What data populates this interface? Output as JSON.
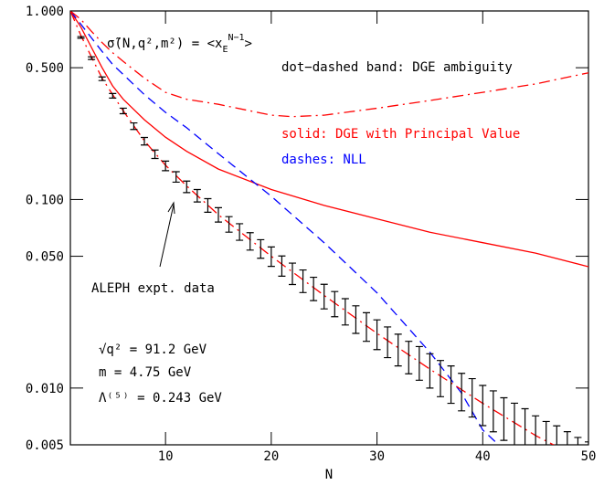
{
  "chart_data": {
    "type": "line",
    "log_y": true,
    "title": [
      "σ̃(N,q²,m²) = <x",
      "E",
      "N−1",
      ">"
    ],
    "xlabel": "N",
    "xlim": [
      1,
      50
    ],
    "xticks": [
      10,
      20,
      30,
      40,
      50
    ],
    "ylim": [
      0.005,
      1.0
    ],
    "yticks": [
      {
        "value": 0.005,
        "label": "0.005"
      },
      {
        "value": 0.01,
        "label": "0.010"
      },
      {
        "value": 0.05,
        "label": "0.050"
      },
      {
        "value": 0.1,
        "label": "0.100"
      },
      {
        "value": 0.5,
        "label": "0.500"
      },
      {
        "value": 1.0,
        "label": "1.000"
      }
    ],
    "annotations": [
      {
        "text": "dot−dashed band: DGE ambiguity",
        "color": "#000000"
      },
      {
        "text": "solid: DGE with Principal Value",
        "color": "#ff0000"
      },
      {
        "text": "dashes: NLL",
        "color": "#0000ff"
      },
      {
        "text": "ALEPH expt. data",
        "color": "#000000"
      },
      {
        "text": "√q² = 91.2 GeV",
        "color": "#000000"
      },
      {
        "text": "m = 4.75 GeV",
        "color": "#000000"
      },
      {
        "text": "Λ⁽⁵⁾ = 0.243 GeV",
        "color": "#000000"
      }
    ],
    "data_points": {
      "color": "#000000",
      "x": [
        2,
        3,
        4,
        5,
        6,
        7,
        8,
        9,
        10,
        11,
        12,
        13,
        14,
        15,
        16,
        17,
        18,
        19,
        20,
        21,
        22,
        23,
        24,
        25,
        26,
        27,
        28,
        29,
        30,
        31,
        32,
        33,
        34,
        35,
        36,
        37,
        38,
        39,
        40,
        41,
        42,
        43,
        44,
        45,
        46,
        47,
        48,
        49,
        50
      ],
      "values": [
        0.724,
        0.562,
        0.437,
        0.355,
        0.295,
        0.245,
        0.204,
        0.174,
        0.151,
        0.132,
        0.117,
        0.105,
        0.0933,
        0.0832,
        0.0741,
        0.0676,
        0.0603,
        0.055,
        0.0501,
        0.0447,
        0.0407,
        0.0372,
        0.0339,
        0.0309,
        0.0282,
        0.0257,
        0.0234,
        0.0214,
        0.0195,
        0.0178,
        0.0162,
        0.0148,
        0.0138,
        0.0126,
        0.0115,
        0.0107,
        0.00977,
        0.00912,
        0.00832,
        0.00776,
        0.00708,
        0.00661,
        0.00617,
        0.00562,
        0.00525,
        0.0049,
        0.00457,
        0.00427,
        0.00398
      ],
      "errors": [
        0.0072,
        0.009,
        0.0096,
        0.0099,
        0.01,
        0.0098,
        0.0094,
        0.009,
        0.0088,
        0.0084,
        0.0082,
        0.008,
        0.0077,
        0.0073,
        0.007,
        0.0068,
        0.0064,
        0.0062,
        0.0059,
        0.0055,
        0.0053,
        0.0051,
        0.0048,
        0.0046,
        0.0043,
        0.0041,
        0.0039,
        0.0037,
        0.0035,
        0.0033,
        0.0031,
        0.0029,
        0.0028,
        0.0026,
        0.0025,
        0.0024,
        0.0022,
        0.0021,
        0.002,
        0.0019,
        0.0018,
        0.0017,
        0.0016,
        0.0015,
        0.0014,
        0.0014,
        0.0013,
        0.0012,
        0.0012
      ]
    },
    "series": [
      {
        "color": "#ff0000",
        "dash": "solid",
        "x": [
          1,
          2,
          3,
          4,
          5,
          6,
          8,
          10,
          12,
          15,
          20,
          25,
          30,
          35,
          40,
          45,
          50
        ],
        "values": [
          1.0,
          0.82,
          0.64,
          0.5,
          0.4,
          0.34,
          0.265,
          0.214,
          0.18,
          0.145,
          0.113,
          0.093,
          0.079,
          0.067,
          0.059,
          0.052,
          0.044
        ]
      },
      {
        "color": "#0000ff",
        "dash": "dashed",
        "x": [
          1,
          2,
          3,
          4,
          5,
          6,
          8,
          10,
          12,
          15,
          20,
          25,
          30,
          35,
          38,
          40,
          41.5
        ],
        "values": [
          1.0,
          0.85,
          0.72,
          0.61,
          0.52,
          0.46,
          0.36,
          0.29,
          0.24,
          0.175,
          0.104,
          0.059,
          0.032,
          0.0155,
          0.0094,
          0.006,
          0.005
        ]
      },
      {
        "color": "#ff0000",
        "dash": "dashdot",
        "x": [
          1,
          2,
          3,
          4,
          5,
          6,
          8,
          10,
          12,
          15,
          20,
          22,
          25,
          30,
          35,
          40,
          45,
          50
        ],
        "values": [
          1.0,
          0.9,
          0.78,
          0.68,
          0.6,
          0.54,
          0.44,
          0.37,
          0.34,
          0.32,
          0.28,
          0.275,
          0.28,
          0.305,
          0.335,
          0.37,
          0.41,
          0.47
        ]
      },
      {
        "color": "#ff0000",
        "dash": "dashdot",
        "x": [
          1,
          2,
          3,
          4,
          5,
          6,
          8,
          10,
          12,
          15,
          20,
          25,
          30,
          35,
          40,
          45,
          50
        ],
        "values": [
          1.0,
          0.74,
          0.57,
          0.44,
          0.36,
          0.295,
          0.205,
          0.152,
          0.118,
          0.083,
          0.05,
          0.031,
          0.0195,
          0.0126,
          0.0083,
          0.0056,
          0.004
        ]
      }
    ]
  }
}
